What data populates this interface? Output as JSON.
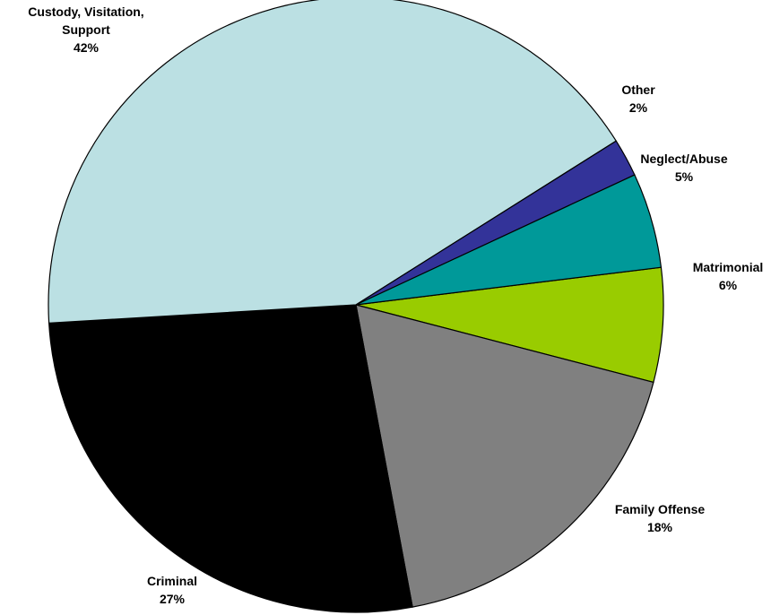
{
  "chart_data": {
    "type": "pie",
    "slices": [
      {
        "label_lines": [
          "Matrimonial"
        ],
        "pct_label": "6%",
        "value": 6,
        "color": "#99CC00"
      },
      {
        "label_lines": [
          "Family Offense"
        ],
        "pct_label": "18%",
        "value": 18,
        "color": "#808080"
      },
      {
        "label_lines": [
          "Criminal"
        ],
        "pct_label": "27%",
        "value": 27,
        "color": "#000000"
      },
      {
        "label_lines": [
          "Custody, Visitation,",
          "Support"
        ],
        "pct_label": "42%",
        "value": 42,
        "color": "#BBE0E3"
      },
      {
        "label_lines": [
          "Other"
        ],
        "pct_label": "2%",
        "value": 2,
        "color": "#333399"
      },
      {
        "label_lines": [
          "Neglect/Abuse"
        ],
        "pct_label": "5%",
        "value": 5,
        "color": "#009999"
      }
    ],
    "start_angle_deg": -7,
    "direction": "clockwise",
    "legend": "none"
  }
}
